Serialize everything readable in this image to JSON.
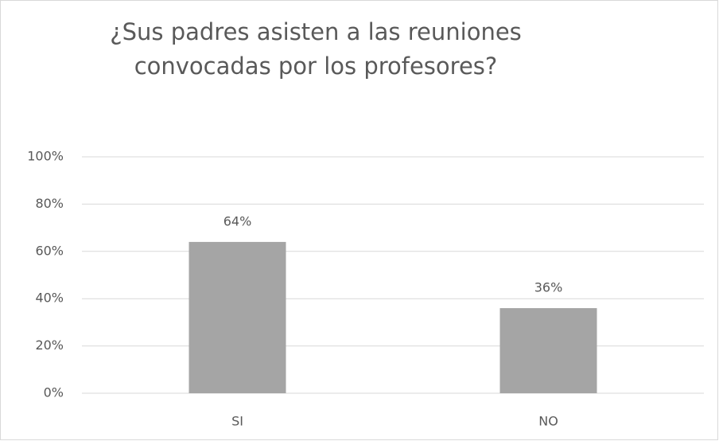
{
  "chart_data": {
    "type": "bar",
    "title": [
      "¿Sus padres asisten a las reuniones",
      "convocadas por los profesores?"
    ],
    "categories": [
      "SI",
      "NO"
    ],
    "values": [
      64,
      36
    ],
    "value_labels": [
      "64%",
      "36%"
    ],
    "color": "#a5a5a5",
    "ylim": [
      0,
      100
    ],
    "yticks": [
      {
        "value": 0,
        "label": "0%"
      },
      {
        "value": 20,
        "label": "20%"
      },
      {
        "value": 40,
        "label": "40%"
      },
      {
        "value": 60,
        "label": "60%"
      },
      {
        "value": 80,
        "label": "80%"
      },
      {
        "value": 100,
        "label": "100%"
      }
    ],
    "grid": true
  }
}
